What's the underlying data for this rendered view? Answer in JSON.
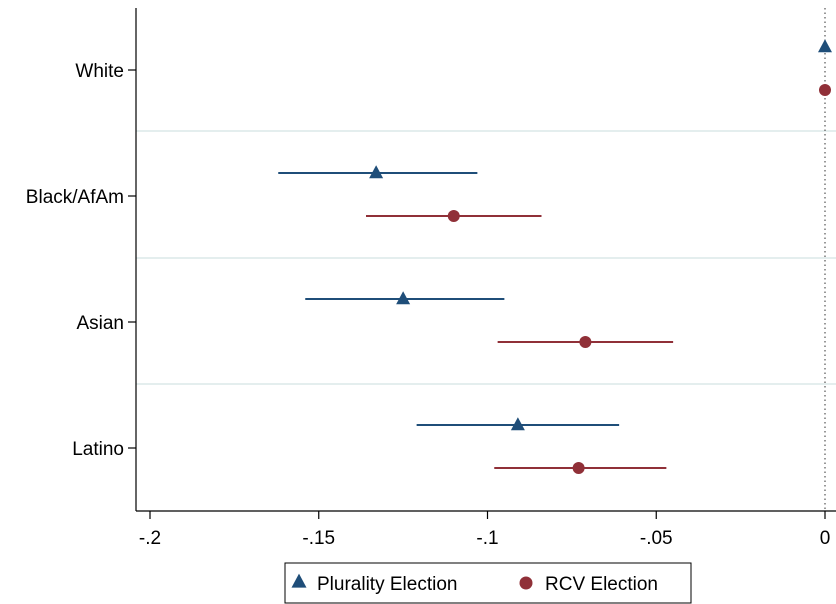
{
  "chart_data": {
    "type": "scatter",
    "subtype": "coefficient-plot-horizontal-with-confidence-intervals",
    "categories": [
      "White",
      "Black/AfAm",
      "Asian",
      "Latino"
    ],
    "x_ticks": [
      -0.2,
      -0.15,
      -0.1,
      -0.05,
      0
    ],
    "x_tick_labels": [
      "-.2",
      "-.15",
      "-.1",
      "-.05",
      "0"
    ],
    "xlim": [
      -0.202,
      0.0
    ],
    "reference_line": {
      "x": 0,
      "style": "dotted"
    },
    "grid": true,
    "legend_position": "bottom",
    "series": [
      {
        "name": "Plurality Election",
        "marker": "triangle",
        "color": "#1f4e79",
        "points": [
          {
            "category": "White",
            "estimate": 0.0,
            "ci_low": null,
            "ci_high": null
          },
          {
            "category": "Black/AfAm",
            "estimate": -0.133,
            "ci_low": -0.162,
            "ci_high": -0.103
          },
          {
            "category": "Asian",
            "estimate": -0.125,
            "ci_low": -0.154,
            "ci_high": -0.095
          },
          {
            "category": "Latino",
            "estimate": -0.091,
            "ci_low": -0.121,
            "ci_high": -0.061
          }
        ]
      },
      {
        "name": "RCV Election",
        "marker": "circle",
        "color": "#903038",
        "points": [
          {
            "category": "White",
            "estimate": 0.0,
            "ci_low": null,
            "ci_high": null
          },
          {
            "category": "Black/AfAm",
            "estimate": -0.11,
            "ci_low": -0.136,
            "ci_high": -0.084
          },
          {
            "category": "Asian",
            "estimate": -0.071,
            "ci_low": -0.097,
            "ci_high": -0.045
          },
          {
            "category": "Latino",
            "estimate": -0.073,
            "ci_low": -0.098,
            "ci_high": -0.047
          }
        ]
      }
    ]
  }
}
